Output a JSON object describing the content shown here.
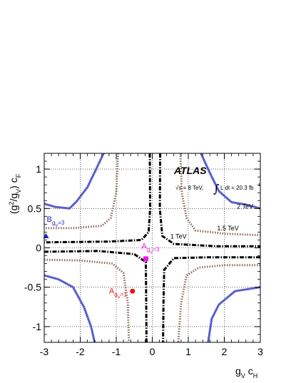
{
  "chart_data": {
    "type": "line",
    "xlim": [
      -3,
      3
    ],
    "ylim": [
      -1.2,
      1.2
    ],
    "x_ticks": [
      -3,
      -2,
      -1,
      0,
      1,
      2,
      3
    ],
    "x_tick_labels": [
      "-3",
      "-2",
      "-1",
      "0",
      "1",
      "2",
      "3"
    ],
    "y_ticks": [
      -1,
      -0.5,
      0,
      0.5,
      1
    ],
    "y_tick_labels": [
      "-1",
      "-0.5",
      "0",
      "0.5",
      "1"
    ],
    "xlabel_main": "g",
    "xlabel_sub1": "V",
    "xlabel_mid": " c",
    "xlabel_sub2": "H",
    "ylabel_pre": "(g",
    "ylabel_sup": "2",
    "ylabel_mid": "/g",
    "ylabel_sub1": "V",
    "ylabel_post": ") c",
    "ylabel_sub2": "F",
    "grid": true,
    "atlas_label": "ATLAS",
    "energy_label": "√s = 8 TeV,",
    "lumi_label": "L dt = 20.3 fb",
    "lumi_sup": "-1",
    "integral_symbol": "∫",
    "colors": {
      "c2tev": "#5a5fcc",
      "c15tev": "#8c6a5a",
      "c1tev": "#000000",
      "A1": "#ee1111",
      "A3": "#ee11ee",
      "B3": "#2222cc"
    },
    "series": [
      {
        "name": "2 TeV",
        "label": "2 TeV",
        "label_x": 2.35,
        "label_y": 0.5,
        "line_style": "solid",
        "branches": [
          [
            [
              -3,
              0.56
            ],
            [
              -2.7,
              0.52
            ],
            [
              -2.3,
              0.5
            ],
            [
              -2.1,
              0.59
            ],
            [
              -1.8,
              0.77
            ],
            [
              -1.6,
              0.96
            ],
            [
              -1.35,
              1.2
            ]
          ],
          [
            [
              1.35,
              1.2
            ],
            [
              1.6,
              0.95
            ],
            [
              1.85,
              0.72
            ],
            [
              2.2,
              0.58
            ],
            [
              2.6,
              0.55
            ],
            [
              3,
              0.5
            ]
          ],
          [
            [
              -3,
              -0.35
            ],
            [
              -2.6,
              -0.4
            ],
            [
              -2.2,
              -0.5
            ],
            [
              -1.9,
              -0.75
            ],
            [
              -1.7,
              -1.0
            ],
            [
              -1.6,
              -1.2
            ]
          ],
          [
            [
              1.55,
              -1.2
            ],
            [
              1.65,
              -0.9
            ],
            [
              1.85,
              -0.72
            ],
            [
              2.3,
              -0.55
            ],
            [
              3,
              -0.5
            ]
          ]
        ]
      },
      {
        "name": "1.5 TeV",
        "label": "1.5 TeV",
        "label_x": 1.8,
        "label_y": 0.22,
        "line_style": "dotted",
        "branches": [
          [
            [
              -0.95,
              1.2
            ],
            [
              -1.0,
              0.7
            ],
            [
              -1.15,
              0.38
            ],
            [
              -1.4,
              0.28
            ],
            [
              -2.2,
              0.25
            ],
            [
              -3,
              0.25
            ]
          ],
          [
            [
              0.78,
              1.2
            ],
            [
              0.82,
              0.7
            ],
            [
              0.95,
              0.38
            ],
            [
              1.2,
              0.22
            ],
            [
              2.0,
              0.18
            ],
            [
              3,
              0.16
            ]
          ],
          [
            [
              -3,
              -0.15
            ],
            [
              -2.0,
              -0.16
            ],
            [
              -1.1,
              -0.2
            ],
            [
              -0.8,
              -0.32
            ],
            [
              -0.68,
              -0.7
            ],
            [
              -0.65,
              -1.2
            ]
          ],
          [
            [
              3,
              -0.22
            ],
            [
              2.0,
              -0.22
            ],
            [
              1.3,
              -0.25
            ],
            [
              0.95,
              -0.35
            ],
            [
              0.8,
              -0.7
            ],
            [
              0.72,
              -1.2
            ]
          ]
        ]
      },
      {
        "name": "1 TeV",
        "label": "1 TeV",
        "label_x": 0.5,
        "label_y": 0.12,
        "line_style": "dashdot",
        "branches": [
          [
            [
              -0.07,
              1.2
            ],
            [
              -0.06,
              0.5
            ],
            [
              -0.1,
              0.2
            ],
            [
              -0.3,
              0.1
            ],
            [
              -1.2,
              0.08
            ],
            [
              -3,
              0.07
            ]
          ],
          [
            [
              0.22,
              1.2
            ],
            [
              0.21,
              0.5
            ],
            [
              0.28,
              0.15
            ],
            [
              0.6,
              0.05
            ],
            [
              1.8,
              0.02
            ],
            [
              3,
              0.02
            ]
          ],
          [
            [
              -3,
              -0.05
            ],
            [
              -1.5,
              -0.04
            ],
            [
              -0.5,
              -0.08
            ],
            [
              -0.18,
              -0.18
            ],
            [
              -0.17,
              -0.6
            ],
            [
              -0.16,
              -1.2
            ]
          ],
          [
            [
              3,
              -0.12
            ],
            [
              1.5,
              -0.12
            ],
            [
              0.6,
              -0.13
            ],
            [
              0.33,
              -0.28
            ],
            [
              0.31,
              -0.7
            ],
            [
              0.3,
              -1.2
            ]
          ]
        ]
      }
    ],
    "points": [
      {
        "name": "A_gV=1",
        "label": "A",
        "sub": "g",
        "subsub": "V",
        "suffix": "=1",
        "x": -0.55,
        "y": -0.55,
        "marker": "circle",
        "color": "#ee1111",
        "label_x": -1.2,
        "label_y": -0.58
      },
      {
        "name": "A_gV=3",
        "label": "A",
        "sub": "g",
        "subsub": "V",
        "suffix": "=3",
        "x": -0.18,
        "y": -0.14,
        "marker": "square",
        "color": "#ee11ee",
        "label_x": -0.3,
        "label_y": -0.01
      },
      {
        "name": "B_gV=3",
        "label": "B",
        "sub": "g",
        "subsub": "V",
        "suffix": "=3",
        "x": -2.95,
        "y": 0.15,
        "marker": "triangle",
        "color": "#2222cc",
        "label_x": -2.93,
        "label_y": 0.33
      }
    ]
  }
}
